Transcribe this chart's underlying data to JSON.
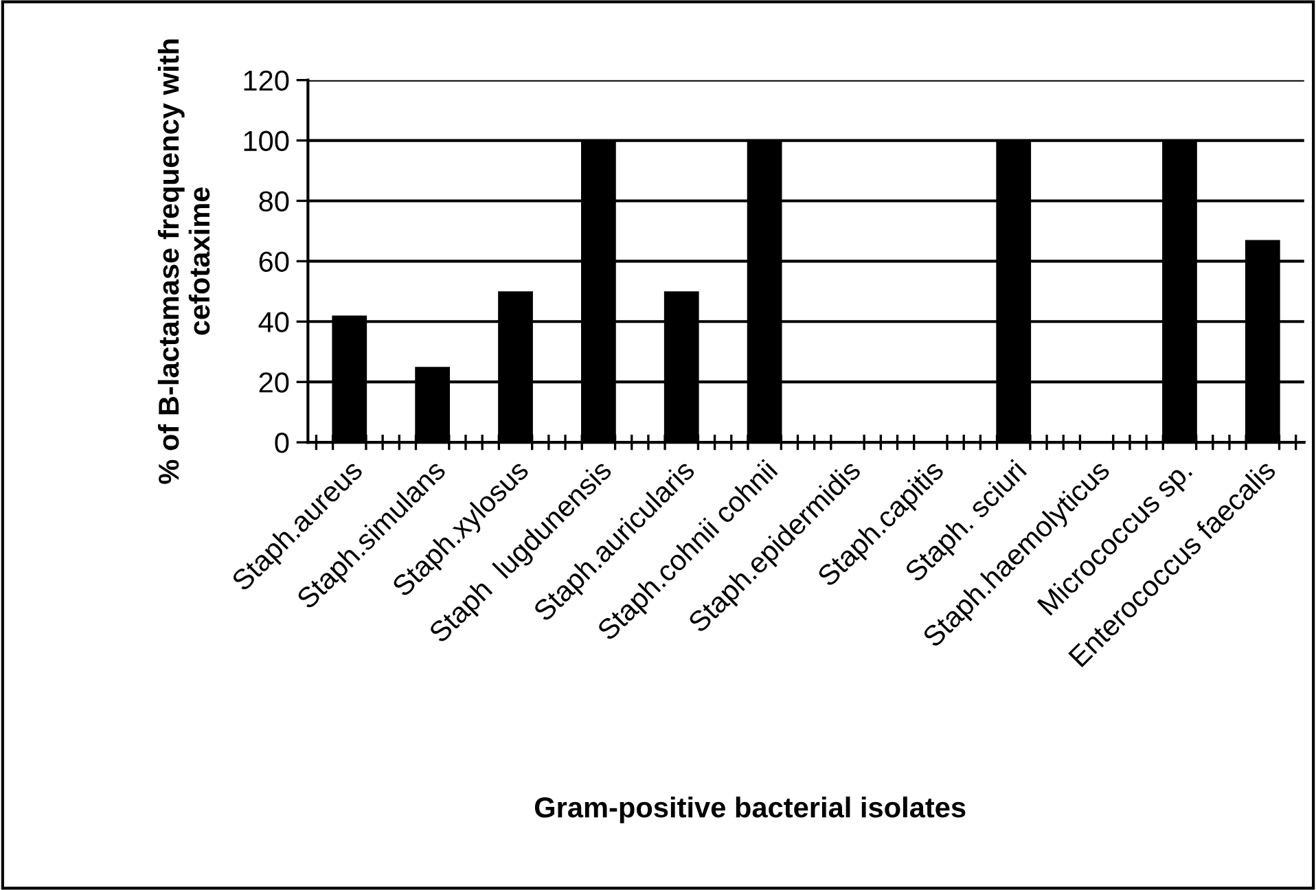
{
  "chart_data": {
    "type": "bar",
    "xlabel": "Gram-positive bacterial isolates",
    "ylabel": "% of B-lactamase frequency with cefotaxime",
    "categories": [
      "Staph.aureus",
      "Staph.simulans",
      "Staph.xylosus",
      "Staph  lugdunensis",
      "Staph.auricularis",
      "Staph.cohnii cohnii",
      "Staph.epidermidis",
      "Staph.capitis",
      "Staph. sciuri",
      "Staph.haemolyticus",
      "Micrococcus sp.",
      "Enterococcus faecalis"
    ],
    "values": [
      42,
      25,
      50,
      100,
      50,
      100,
      0,
      0,
      100,
      0,
      100,
      67
    ],
    "color": "#000000",
    "ylim": [
      0,
      120
    ],
    "yticks": [
      0,
      20,
      40,
      60,
      80,
      100,
      120
    ],
    "grid": "y",
    "legend": false
  }
}
